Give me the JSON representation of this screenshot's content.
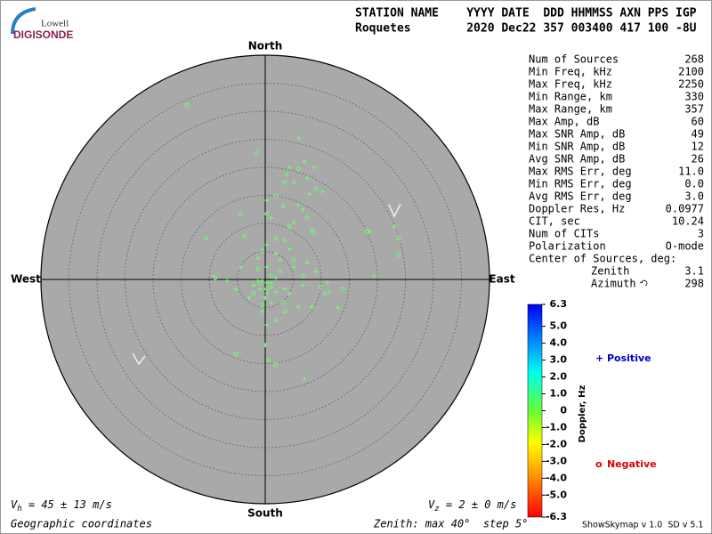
{
  "logo": {
    "top": "Lowell",
    "bottom": "DIGISONDE"
  },
  "header": {
    "labels": "STATION NAME    YYYY DATE  DDD HHMMSS AXN PPS IGP",
    "values": "Roquetes        2020 Dec22 357 003400 417 100 -8U"
  },
  "stats": {
    "rows": [
      [
        "Num of Sources",
        "268"
      ],
      [
        "Min Freq, kHz",
        "2100"
      ],
      [
        "Max Freq, kHz",
        "2250"
      ],
      [
        "Min Range, km",
        "330"
      ],
      [
        "Max Range, km",
        "357"
      ],
      [
        "Max Amp, dB",
        "60"
      ],
      [
        "Max SNR Amp, dB",
        "49"
      ],
      [
        "Min SNR Amp, dB",
        "12"
      ],
      [
        "Avg SNR Amp, dB",
        "26"
      ],
      [
        "Max RMS Err, deg",
        "11.0"
      ],
      [
        "Min RMS Err, deg",
        "0.0"
      ],
      [
        "Avg RMS Err, deg",
        "3.0"
      ],
      [
        "Doppler Res, Hz",
        "0.0977"
      ],
      [
        "CIT, sec",
        "10.24"
      ],
      [
        "Num of CITs",
        "3"
      ],
      [
        "Polarization",
        "O-mode"
      ]
    ],
    "center_title": "Center of Sources, deg:",
    "center_rows": [
      [
        "Zenith",
        "3.1"
      ],
      [
        "Azimuth",
        "298"
      ]
    ]
  },
  "colorbar": {
    "label": "Doppler, Hz",
    "lim": [
      -6.3,
      6.3
    ],
    "ticks": [
      6.3,
      {
        "value": 5,
        "label": "5.0"
      },
      {
        "value": 4,
        "label": "4.0"
      },
      {
        "value": 3,
        "label": "3.0"
      },
      {
        "value": 2,
        "label": "2.0"
      },
      {
        "value": 1,
        "label": "1.0"
      },
      0,
      {
        "value": -1,
        "label": "-1.0"
      },
      {
        "value": -2,
        "label": "-2.0"
      },
      {
        "value": -3,
        "label": "-3.0"
      },
      {
        "value": -4,
        "label": "-4.0"
      },
      {
        "value": -5,
        "label": "-5.0"
      },
      -6.3
    ]
  },
  "footer": {
    "vh": {
      "symbol": "V",
      "subscript": "h",
      "text": " = 45 ± 13 m/s"
    },
    "vz": {
      "symbol": "V",
      "subscript": "z",
      "text": " = 2 ± 0 m/s"
    },
    "coords": "Geographic coordinates",
    "zenith": "Zenith: max 40°  step 5°",
    "version": "ShowSkymap v 1.0  SD v 5.1"
  },
  "chart_data": {
    "type": "scatter",
    "polar": true,
    "directions": {
      "north": "North",
      "south": "South",
      "east": "East",
      "west": "West"
    },
    "xlim": [
      -40,
      40
    ],
    "ylim": [
      -40,
      40
    ],
    "rticks": [
      5,
      10,
      15,
      20,
      25,
      30,
      35,
      40
    ],
    "grid": true,
    "series": [
      {
        "name": "Positive",
        "marker": "+",
        "color": "#6dff6d",
        "legend_color": "#0000cc",
        "x": [
          6.0,
          7.0,
          4.3,
          8.7,
          3.8,
          7.5,
          5.1,
          10.2,
          7.9,
          0.3,
          5.9,
          3.2,
          6.7,
          1.1,
          5.1,
          8.3,
          18.6,
          -10.5,
          23.0,
          3.5,
          0.3,
          4.3,
          1.9,
          -1.3,
          2.7,
          7.5,
          -4.4,
          0.3,
          5.1,
          9.0,
          19.4,
          -9.2,
          -5.2,
          -2.1,
          1.1,
          3.5,
          6.7,
          11.1,
          11.4,
          13.0,
          8.3,
          1.1,
          -0.5,
          1.9,
          0.3,
          0,
          0.6,
          7.0,
          -1.3,
          1.9,
          4.3,
          -2.9,
          10.6,
          -6.8,
          2.7,
          5.9,
          0.3,
          -0.5,
          0.3,
          1.1,
          -1.0,
          1.9,
          0
        ],
        "y": [
          25.2,
          21.0,
          20.0,
          20.0,
          18.7,
          18.1,
          17.3,
          15.7,
          15.2,
          14.1,
          13.3,
          13.0,
          12.5,
          11.0,
          10.2,
          8.9,
          8.6,
          7.3,
          9.4,
          7.0,
          6.2,
          5.4,
          4.6,
          3.8,
          3.5,
          3.0,
          2.2,
          2.2,
          2.2,
          1.4,
          0.6,
          0.6,
          -1.7,
          -1.0,
          -0.6,
          -1.7,
          -1.0,
          -0.6,
          -2.2,
          -5.0,
          -4.9,
          -4.1,
          -5.7,
          -7.3,
          -8.1,
          -11.7,
          -14.4,
          -17.8,
          -0.2,
          0.3,
          -2.5,
          -3.3,
          -2.5,
          -0.2,
          1.4,
          -4.9,
          -2.5,
          -0.2,
          -0.6,
          -1.3,
          -1.7,
          -2.2,
          -3.3
        ]
      },
      {
        "name": "Negative",
        "marker": "o",
        "color": "#6dff6d",
        "legend_color": "#dd0000",
        "x": [
          -14.0,
          -1.6,
          5.9,
          3.5,
          9.0,
          1.9,
          -4.4,
          0.3,
          4.3,
          7.5,
          8.7,
          18.1,
          23.8,
          23.8,
          -3.7,
          1.9,
          -0.5,
          -1.3,
          5.1,
          6.7,
          9.8,
          13.8,
          -8.9,
          -2.1,
          0.3,
          3.2,
          -0.5,
          -5.2,
          1.9,
          3.5,
          1.1,
          -1.0
        ],
        "y": [
          31.1,
          22.5,
          19.7,
          17.3,
          16.2,
          14.9,
          11.7,
          11.7,
          9.4,
          11.0,
          8.3,
          8.6,
          7.3,
          4.4,
          7.8,
          7.3,
          5.1,
          1.9,
          3.5,
          0.6,
          -1.3,
          -1.7,
          0.3,
          -2.5,
          -1.7,
          -4.1,
          -4.6,
          -13.3,
          -15.2,
          -5.7,
          0.6,
          -0.6
        ]
      }
    ]
  }
}
